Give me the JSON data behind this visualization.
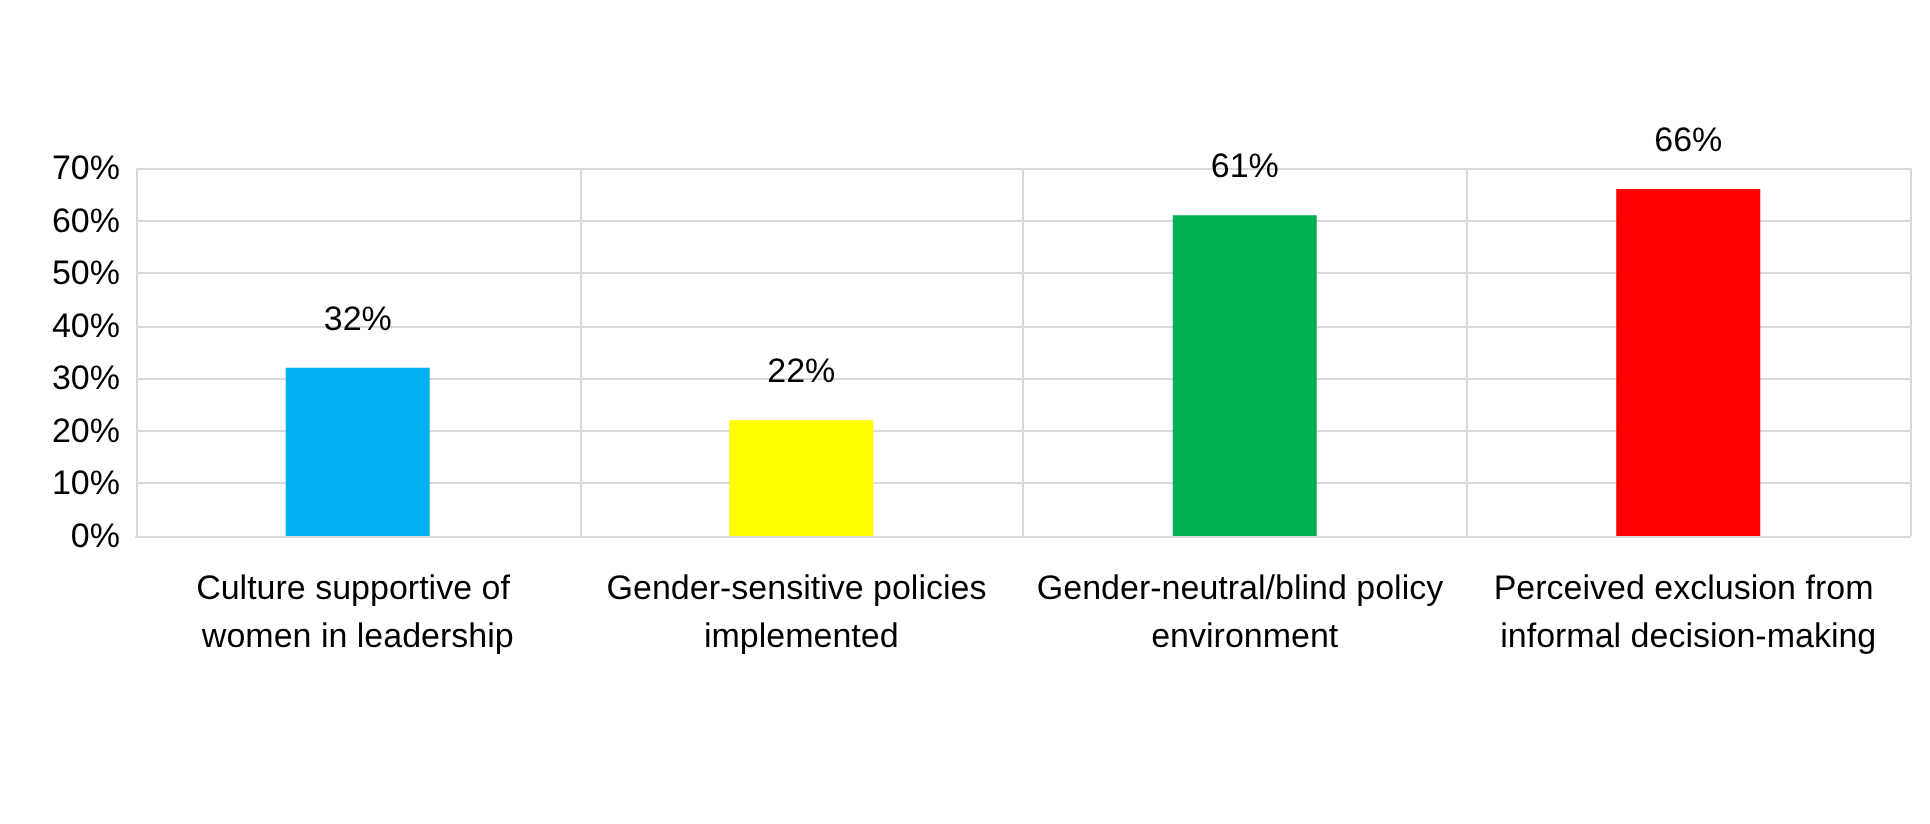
{
  "chart_data": {
    "type": "bar",
    "categories": [
      "Culture supportive of women in leadership",
      "Gender-sensitive policies implemented",
      "Gender-neutral/blind policy environment",
      "Perceived exclusion from informal decision-making"
    ],
    "values": [
      32,
      22,
      61,
      66
    ],
    "colors": [
      "#00b0f0",
      "#ffff00",
      "#00b050",
      "#ff0000"
    ],
    "value_labels": [
      "32%",
      "22%",
      "61%",
      "66%"
    ],
    "ylim": [
      0,
      70
    ],
    "yticks": [
      {
        "value": 0,
        "label": "0%"
      },
      {
        "value": 10,
        "label": "10%"
      },
      {
        "value": 20,
        "label": "20%"
      },
      {
        "value": 30,
        "label": "30%"
      },
      {
        "value": 40,
        "label": "40%"
      },
      {
        "value": 50,
        "label": "50%"
      },
      {
        "value": 60,
        "label": "60%"
      },
      {
        "value": 70,
        "label": "70%"
      }
    ],
    "grid": true
  }
}
